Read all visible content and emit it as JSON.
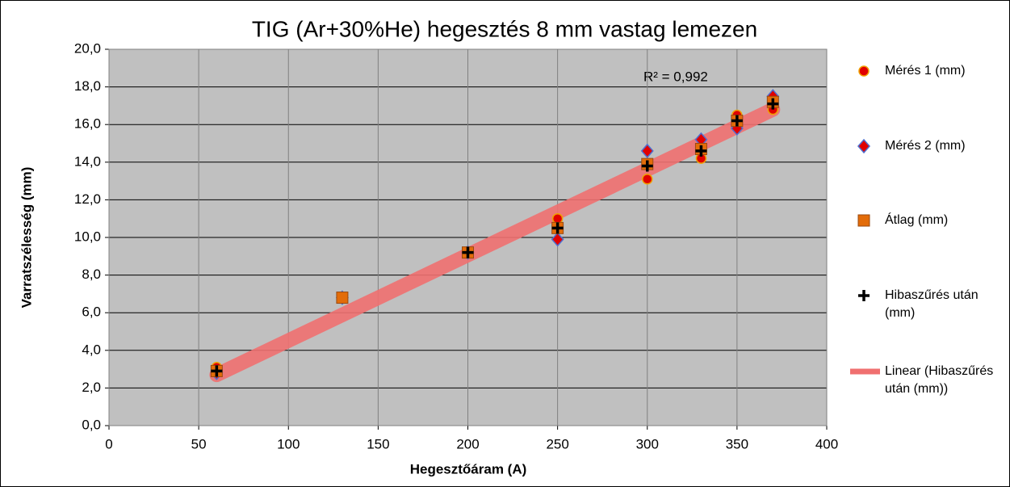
{
  "chart_data": {
    "type": "scatter",
    "title": "TIG (Ar+30%He) hegesztés  8 mm vastag  lemezen",
    "x_label": "Hegesztőáram (A)",
    "y_label": "Varratszélesség (mm)",
    "annotation": "R² = 0,992",
    "xlim": [
      0,
      400
    ],
    "xticks": [
      0,
      50,
      100,
      150,
      200,
      250,
      300,
      350,
      400
    ],
    "ylim": [
      0,
      20
    ],
    "yticks": [
      {
        "value": 0,
        "label": "0,0"
      },
      {
        "value": 2,
        "label": "2,0"
      },
      {
        "value": 4,
        "label": "4,0"
      },
      {
        "value": 6,
        "label": "6,0"
      },
      {
        "value": 8,
        "label": "8,0"
      },
      {
        "value": 10,
        "label": "10,0"
      },
      {
        "value": 12,
        "label": "12,0"
      },
      {
        "value": 14,
        "label": "14,0"
      },
      {
        "value": 16,
        "label": "16,0"
      },
      {
        "value": 18,
        "label": "18,0"
      },
      {
        "value": 20,
        "label": "20,0"
      }
    ],
    "grid": true,
    "legend": "right",
    "series": [
      {
        "name": "Mérés 1 (mm)",
        "marker": "circle",
        "color": "#e00000",
        "x": [
          60,
          200,
          250,
          300,
          330,
          350,
          370
        ],
        "values": [
          3.1,
          9.2,
          11.0,
          13.1,
          14.2,
          16.5,
          16.8
        ]
      },
      {
        "name": "Mérés 2 (mm)",
        "marker": "diamond",
        "color": "#e00000",
        "x": [
          60,
          130,
          200,
          250,
          300,
          330,
          350,
          370
        ],
        "values": [
          2.8,
          6.8,
          9.2,
          9.9,
          14.6,
          15.2,
          15.8,
          17.5
        ]
      },
      {
        "name": "Átlag (mm)",
        "marker": "square",
        "color": "#e36c09",
        "x": [
          60,
          130,
          200,
          250,
          300,
          330,
          350,
          370
        ],
        "values": [
          2.9,
          6.8,
          9.2,
          10.5,
          13.9,
          14.7,
          16.2,
          17.2
        ]
      },
      {
        "name": "Hibaszűrés után (mm)",
        "marker": "plus",
        "color": "#000000",
        "x": [
          60,
          200,
          250,
          300,
          330,
          350,
          370
        ],
        "values": [
          2.9,
          9.2,
          10.5,
          13.8,
          14.6,
          16.2,
          17.1
        ]
      }
    ],
    "trendline": {
      "name": "Linear (Hibaszűrés után (mm))",
      "color": "#f07070",
      "x": [
        60,
        370
      ],
      "values": [
        2.7,
        16.8
      ]
    }
  }
}
